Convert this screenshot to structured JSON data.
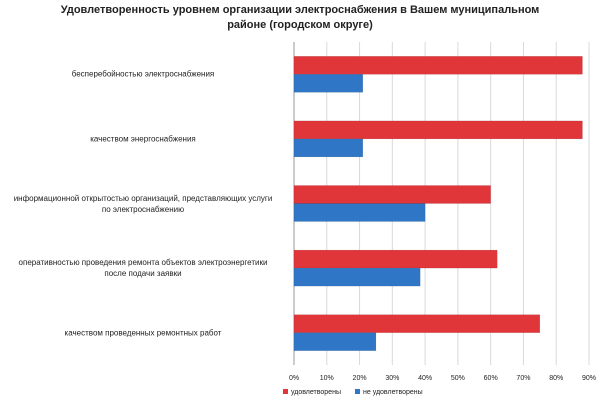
{
  "chart_data": {
    "type": "hbar",
    "title": "Удовлетворенность уровнем организации электроснабжения в Вашем муниципальном районе (городском округе)",
    "categories": [
      "бесперебойностью  электроснабжения",
      "качеством энергоснабжения",
      "информационной открытостью  организаций, представляющих услуги\nпо электроснабжению",
      "оперативностью проведения ремонта  объектов электроэнергетики\nпосле подачи заявки",
      "качеством проведенных ремонтных  работ"
    ],
    "series": [
      {
        "name": "удовлетворены",
        "color": "#e0363a",
        "values": [
          88,
          88,
          60,
          62,
          75
        ]
      },
      {
        "name": "не удовлетворены",
        "color": "#2f77c6",
        "values": [
          21,
          21,
          40,
          38.5,
          25
        ]
      }
    ],
    "xlim": [
      0,
      90
    ],
    "xticks": [
      {
        "value": 0,
        "label": "0%"
      },
      {
        "value": 10,
        "label": "10%"
      },
      {
        "value": 20,
        "label": "20%"
      },
      {
        "value": 30,
        "label": "30%"
      },
      {
        "value": 40,
        "label": "40%"
      },
      {
        "value": 50,
        "label": "50%"
      },
      {
        "value": 60,
        "label": "60%"
      },
      {
        "value": 70,
        "label": "70%"
      },
      {
        "value": 80,
        "label": "80%"
      },
      {
        "value": 90,
        "label": "90%"
      }
    ],
    "grid": true,
    "legend": "bottom"
  }
}
